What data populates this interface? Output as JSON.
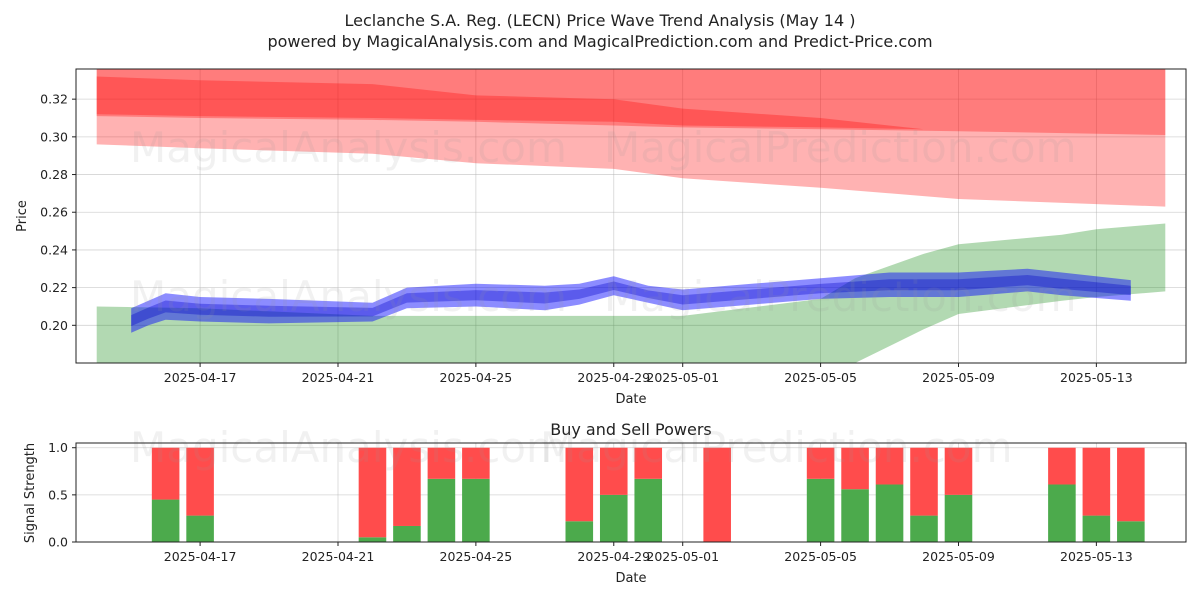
{
  "title_line1": "Leclanche S.A. Reg. (LECN) Price Wave Trend Analysis (May 14 )",
  "title_line2": "powered by MagicalAnalysis.com and MagicalPrediction.com and Predict-Price.com",
  "watermarks": [
    "MagicalAnalysis.com",
    "MagicalPrediction.com"
  ],
  "colors": {
    "red_band": "#ff0000",
    "green_band": "#008000",
    "blue_band": "#0000ff",
    "buy": "#4caa4c",
    "sell": "#ff4c4c"
  },
  "chart_data": [
    {
      "type": "area",
      "title": "",
      "xlabel": "Date",
      "ylabel": "Price",
      "ylim": [
        0.18,
        0.336
      ],
      "grid": true,
      "x_tick_labels": [
        "2025-04-17",
        "2025-04-21",
        "2025-04-25",
        "2025-04-29",
        "2025-05-01",
        "2025-05-05",
        "2025-05-09",
        "2025-05-13"
      ],
      "y_tick_labels": [
        "0.20",
        "0.22",
        "0.24",
        "0.26",
        "0.28",
        "0.30",
        "0.32"
      ],
      "y_ticks": [
        0.2,
        0.22,
        0.24,
        0.26,
        0.28,
        0.3,
        0.32
      ],
      "x_ticks_day": [
        3,
        7,
        11,
        15,
        17,
        21,
        25,
        29
      ],
      "x_day0": "2025-04-14",
      "x_range": [
        -0.6,
        31.6
      ],
      "series": [
        {
          "name": "red outer band",
          "color": "#ff0000",
          "opacity": 0.3,
          "x": [
            0,
            3,
            8,
            11,
            15,
            17,
            21,
            25,
            31
          ],
          "upper": [
            0.338,
            0.338,
            0.338,
            0.338,
            0.338,
            0.338,
            0.338,
            0.338,
            0.337
          ],
          "lower": [
            0.296,
            0.294,
            0.291,
            0.286,
            0.283,
            0.278,
            0.273,
            0.267,
            0.263
          ]
        },
        {
          "name": "red upper band",
          "color": "#ff0000",
          "opacity": 0.3,
          "x": [
            0,
            3,
            8,
            11,
            15,
            17,
            21,
            25,
            31
          ],
          "upper": [
            0.338,
            0.338,
            0.338,
            0.338,
            0.338,
            0.338,
            0.338,
            0.338,
            0.338
          ],
          "lower": [
            0.311,
            0.31,
            0.309,
            0.308,
            0.306,
            0.305,
            0.304,
            0.303,
            0.301
          ]
        },
        {
          "name": "red core band",
          "color": "#ff0000",
          "opacity": 0.3,
          "x": [
            0,
            3,
            8,
            11,
            15,
            17,
            21,
            24
          ],
          "upper": [
            0.332,
            0.33,
            0.328,
            0.322,
            0.32,
            0.315,
            0.31,
            0.304
          ],
          "lower": [
            0.312,
            0.311,
            0.31,
            0.309,
            0.308,
            0.306,
            0.305,
            0.304
          ]
        },
        {
          "name": "green band",
          "color": "#008000",
          "opacity": 0.3,
          "x": [
            0,
            3,
            8,
            11,
            15,
            17,
            21,
            22,
            24,
            25,
            28,
            29,
            31
          ],
          "upper": [
            0.21,
            0.209,
            0.205,
            0.205,
            0.205,
            0.205,
            0.214,
            0.225,
            0.238,
            0.243,
            0.248,
            0.251,
            0.254
          ],
          "lower": [
            0.179,
            0.179,
            0.179,
            0.179,
            0.179,
            0.179,
            0.179,
            0.18,
            0.198,
            0.206,
            0.213,
            0.215,
            0.218
          ]
        },
        {
          "name": "blue price wave",
          "color": "#0000ff",
          "opacity": 0.45,
          "x": [
            1,
            1.5,
            2,
            3,
            5,
            8,
            9,
            11,
            13,
            14,
            15,
            16,
            17,
            19,
            21,
            23,
            25,
            27,
            28,
            30
          ],
          "upper": [
            0.209,
            0.213,
            0.217,
            0.215,
            0.214,
            0.212,
            0.22,
            0.222,
            0.221,
            0.222,
            0.226,
            0.221,
            0.219,
            0.222,
            0.225,
            0.228,
            0.228,
            0.23,
            0.228,
            0.224
          ],
          "lower": [
            0.196,
            0.2,
            0.203,
            0.202,
            0.201,
            0.202,
            0.209,
            0.21,
            0.208,
            0.211,
            0.216,
            0.212,
            0.208,
            0.211,
            0.214,
            0.215,
            0.215,
            0.218,
            0.216,
            0.213
          ]
        }
      ]
    },
    {
      "type": "bar",
      "title": "Buy and Sell Powers",
      "xlabel": "Date",
      "ylabel": "Signal Strength",
      "ylim": [
        0,
        1.05
      ],
      "grid": true,
      "x_tick_labels": [
        "2025-04-17",
        "2025-04-21",
        "2025-04-25",
        "2025-04-29",
        "2025-05-01",
        "2025-05-05",
        "2025-05-09",
        "2025-05-13"
      ],
      "y_tick_labels": [
        "0.0",
        "0.5",
        "1.0"
      ],
      "y_ticks": [
        0,
        0.5,
        1.0
      ],
      "x_ticks_day": [
        3,
        7,
        11,
        15,
        17,
        21,
        25,
        29
      ],
      "x_day0": "2025-04-14",
      "x_range": [
        -0.6,
        31.6
      ],
      "series": [
        {
          "name": "buy",
          "color": "#4caa4c"
        },
        {
          "name": "sell",
          "color": "#ff4c4c"
        }
      ],
      "bars": [
        {
          "day": 2,
          "buy": 0.45,
          "sell": 0.55
        },
        {
          "day": 3,
          "buy": 0.28,
          "sell": 0.72
        },
        {
          "day": 8,
          "buy": 0.05,
          "sell": 0.95
        },
        {
          "day": 9,
          "buy": 0.17,
          "sell": 0.83
        },
        {
          "day": 10,
          "buy": 0.67,
          "sell": 0.33
        },
        {
          "day": 11,
          "buy": 0.67,
          "sell": 0.33
        },
        {
          "day": 14,
          "buy": 0.22,
          "sell": 0.78
        },
        {
          "day": 15,
          "buy": 0.5,
          "sell": 0.5
        },
        {
          "day": 16,
          "buy": 0.67,
          "sell": 0.33
        },
        {
          "day": 18,
          "buy": 0.0,
          "sell": 1.0
        },
        {
          "day": 21,
          "buy": 0.67,
          "sell": 0.33
        },
        {
          "day": 22,
          "buy": 0.56,
          "sell": 0.44
        },
        {
          "day": 23,
          "buy": 0.61,
          "sell": 0.39
        },
        {
          "day": 24,
          "buy": 0.28,
          "sell": 0.72
        },
        {
          "day": 25,
          "buy": 0.5,
          "sell": 0.5
        },
        {
          "day": 28,
          "buy": 0.61,
          "sell": 0.39
        },
        {
          "day": 29,
          "buy": 0.28,
          "sell": 0.72
        },
        {
          "day": 30,
          "buy": 0.22,
          "sell": 0.78
        }
      ]
    }
  ]
}
